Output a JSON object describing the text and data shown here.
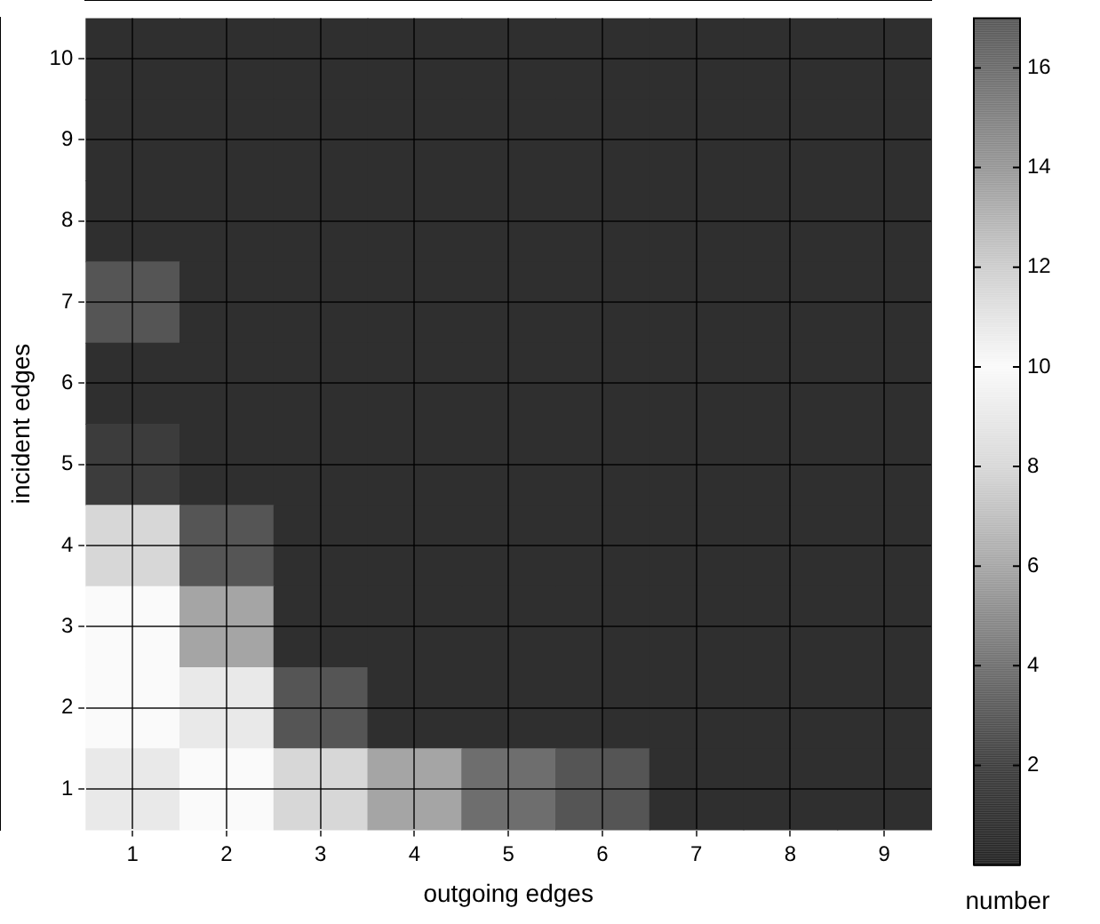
{
  "chart_data": {
    "type": "heatmap",
    "xlabel": "outgoing edges",
    "ylabel": "incident edges",
    "clabel": "number",
    "categories": [
      "1",
      "2",
      "3",
      "4",
      "5",
      "6",
      "7",
      "8",
      "9"
    ],
    "y_categories": [
      "10",
      "9",
      "8",
      "7",
      "6",
      "5",
      "4",
      "3",
      "2",
      "1"
    ],
    "cells": [
      [
        1,
        1,
        1,
        1,
        1,
        1,
        1,
        1,
        1
      ],
      [
        1,
        1,
        1,
        1,
        1,
        1,
        1,
        1,
        1
      ],
      [
        1,
        1,
        1,
        1,
        1,
        1,
        1,
        1,
        1
      ],
      [
        3,
        1,
        1,
        1,
        1,
        1,
        1,
        1,
        1
      ],
      [
        1,
        1,
        1,
        1,
        1,
        1,
        1,
        1,
        1
      ],
      [
        2,
        1,
        1,
        1,
        1,
        1,
        1,
        1,
        1
      ],
      [
        8,
        3,
        1,
        1,
        1,
        1,
        1,
        1,
        1
      ],
      [
        10,
        6,
        1,
        1,
        1,
        1,
        1,
        1,
        1
      ],
      [
        10,
        9,
        3,
        1,
        1,
        1,
        1,
        1,
        1
      ],
      [
        9,
        10,
        8,
        6,
        4,
        3,
        1,
        1,
        1
      ]
    ],
    "clim": [
      0,
      17
    ],
    "cticks": [
      2,
      4,
      6,
      8,
      10,
      12,
      14,
      16
    ],
    "grid": true
  }
}
